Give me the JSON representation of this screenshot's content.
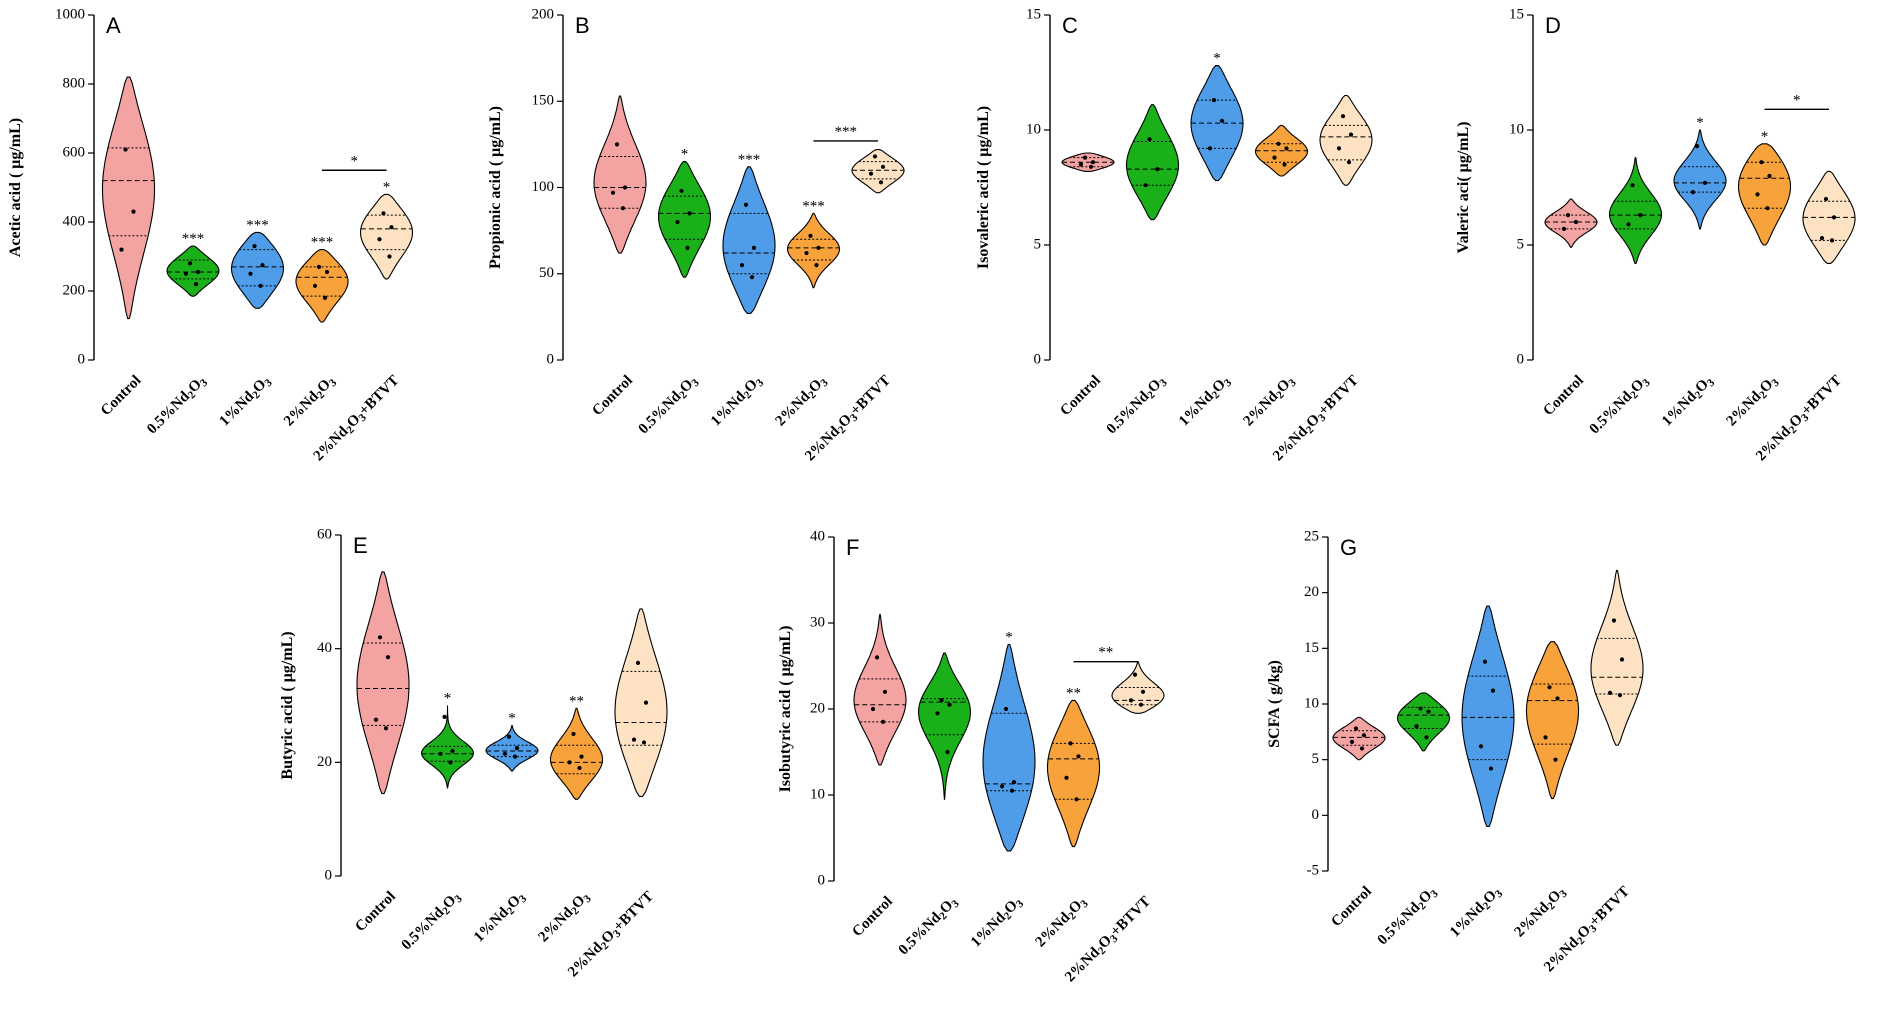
{
  "figure": {
    "category_labels": [
      {
        "main": "Control"
      },
      {
        "main": "0.5%Nd",
        "sub": "2",
        "main2": "O",
        "sub2": "3"
      },
      {
        "main": "1%Nd",
        "sub": "2",
        "main2": "O",
        "sub2": "3"
      },
      {
        "main": "2%Nd",
        "sub": "2",
        "main2": "O",
        "sub2": "3"
      },
      {
        "main": "2%Nd",
        "sub": "2",
        "main2": "O",
        "sub2": "3",
        "tail": "+BTVT"
      }
    ]
  },
  "chart_data": [
    {
      "panel": "A",
      "type": "violin",
      "categories": [
        "Control",
        "0.5%Nd2O3",
        "1%Nd2O3",
        "2%Nd2O3",
        "2%Nd2O3+BTVT"
      ],
      "ylabel": "Acetic acid ( μg/mL)",
      "ylim": [
        0,
        1000
      ],
      "yticks": [
        "0",
        "200",
        "400",
        "600",
        "800",
        "1000"
      ],
      "colors": [
        "#f4a3a3",
        "#19b019",
        "#4f9de8",
        "#f7a23b",
        "#fde3c3"
      ],
      "series": [
        {
          "name": "Control",
          "range": [
            120,
            820
          ],
          "median": 520,
          "q1": 360,
          "q3": 615,
          "points": [
            610,
            430,
            320
          ]
        },
        {
          "name": "0.5%Nd2O3",
          "range": [
            185,
            330
          ],
          "median": 255,
          "q1": 235,
          "q3": 290,
          "points": [
            280,
            255,
            250,
            220
          ]
        },
        {
          "name": "1%Nd2O3",
          "range": [
            150,
            370
          ],
          "median": 270,
          "q1": 215,
          "q3": 320,
          "points": [
            330,
            275,
            250,
            215
          ]
        },
        {
          "name": "2%Nd2O3",
          "range": [
            110,
            320
          ],
          "median": 240,
          "q1": 185,
          "q3": 270,
          "points": [
            270,
            255,
            215,
            180
          ]
        },
        {
          "name": "2%Nd2O3+BTVT",
          "range": [
            235,
            480
          ],
          "median": 380,
          "q1": 320,
          "q3": 420,
          "points": [
            425,
            385,
            350,
            300
          ]
        }
      ],
      "significance": [
        {
          "index": 1,
          "label": "***"
        },
        {
          "index": 2,
          "label": "***"
        },
        {
          "index": 3,
          "label": "***"
        },
        {
          "index": 4,
          "label": "*"
        }
      ],
      "brackets": [
        {
          "from": 3,
          "to": 4,
          "value": 550,
          "label": "*"
        }
      ]
    },
    {
      "panel": "B",
      "type": "violin",
      "categories": [
        "Control",
        "0.5%Nd2O3",
        "1%Nd2O3",
        "2%Nd2O3",
        "2%Nd2O3+BTVT"
      ],
      "ylabel": "Propionic acid ( μg/mL)",
      "ylim": [
        0,
        200
      ],
      "yticks": [
        "0",
        "50",
        "100",
        "150",
        "200"
      ],
      "colors": [
        "#f4a3a3",
        "#19b019",
        "#4f9de8",
        "#f7a23b",
        "#fde3c3"
      ],
      "series": [
        {
          "name": "Control",
          "range": [
            62,
            153
          ],
          "median": 100,
          "q1": 88,
          "q3": 118,
          "points": [
            125,
            100,
            97,
            88
          ]
        },
        {
          "name": "0.5%Nd2O3",
          "range": [
            48,
            115
          ],
          "median": 85,
          "q1": 70,
          "q3": 95,
          "points": [
            98,
            85,
            80,
            65
          ]
        },
        {
          "name": "1%Nd2O3",
          "range": [
            27,
            112
          ],
          "median": 62,
          "q1": 50,
          "q3": 85,
          "points": [
            90,
            65,
            55,
            48
          ]
        },
        {
          "name": "2%Nd2O3",
          "range": [
            42,
            85
          ],
          "median": 65,
          "q1": 58,
          "q3": 70,
          "points": [
            72,
            65,
            62,
            55
          ]
        },
        {
          "name": "2%Nd2O3+BTVT",
          "range": [
            97,
            122
          ],
          "median": 110,
          "q1": 105,
          "q3": 115,
          "points": [
            118,
            112,
            108,
            103
          ]
        }
      ],
      "significance": [
        {
          "index": 1,
          "label": "*"
        },
        {
          "index": 2,
          "label": "***"
        },
        {
          "index": 3,
          "label": "***"
        }
      ],
      "brackets": [
        {
          "from": 3,
          "to": 4,
          "value": 127,
          "label": "***"
        }
      ]
    },
    {
      "panel": "C",
      "type": "violin",
      "categories": [
        "Control",
        "0.5%Nd2O3",
        "1%Nd2O3",
        "2%Nd2O3",
        "2%Nd2O3+BTVT"
      ],
      "ylabel": "Isovaleric acid ( μg/mL)",
      "ylim": [
        0,
        15
      ],
      "yticks": [
        "0",
        "5",
        "10",
        "15"
      ],
      "colors": [
        "#f4a3a3",
        "#19b019",
        "#4f9de8",
        "#f7a23b",
        "#fde3c3"
      ],
      "series": [
        {
          "name": "Control",
          "range": [
            8.2,
            9.0
          ],
          "median": 8.6,
          "q1": 8.4,
          "q3": 8.8,
          "points": [
            8.8,
            8.6,
            8.5,
            8.4
          ]
        },
        {
          "name": "0.5%Nd2O3",
          "range": [
            6.1,
            11.1
          ],
          "median": 8.3,
          "q1": 7.6,
          "q3": 9.5,
          "points": [
            9.6,
            8.3,
            7.6
          ]
        },
        {
          "name": "1%Nd2O3",
          "range": [
            7.8,
            12.8
          ],
          "median": 10.3,
          "q1": 9.2,
          "q3": 11.3,
          "points": [
            11.3,
            10.4,
            9.2
          ]
        },
        {
          "name": "2%Nd2O3",
          "range": [
            8.0,
            10.2
          ],
          "median": 9.1,
          "q1": 8.6,
          "q3": 9.4,
          "points": [
            9.4,
            9.2,
            8.8,
            8.5
          ]
        },
        {
          "name": "2%Nd2O3+BTVT",
          "range": [
            7.6,
            11.5
          ],
          "median": 9.7,
          "q1": 8.7,
          "q3": 10.2,
          "points": [
            10.6,
            9.8,
            9.2,
            8.6
          ]
        }
      ],
      "significance": [
        {
          "index": 2,
          "label": "*"
        }
      ],
      "brackets": []
    },
    {
      "panel": "D",
      "type": "violin",
      "categories": [
        "Control",
        "0.5%Nd2O3",
        "1%Nd2O3",
        "2%Nd2O3",
        "2%Nd2O3+BTVT"
      ],
      "ylabel": "Valeric aci( μg/mL)",
      "ylim": [
        0,
        15
      ],
      "yticks": [
        "0",
        "5",
        "10",
        "15"
      ],
      "colors": [
        "#f4a3a3",
        "#19b019",
        "#4f9de8",
        "#f7a23b",
        "#fde3c3"
      ],
      "series": [
        {
          "name": "Control",
          "range": [
            4.9,
            7.0
          ],
          "median": 6.0,
          "q1": 5.7,
          "q3": 6.3,
          "points": [
            6.3,
            6.0,
            5.7
          ]
        },
        {
          "name": "0.5%Nd2O3",
          "range": [
            4.2,
            8.8
          ],
          "median": 6.3,
          "q1": 5.7,
          "q3": 6.9,
          "points": [
            7.6,
            6.3,
            5.9
          ]
        },
        {
          "name": "1%Nd2O3",
          "range": [
            5.7,
            10.0
          ],
          "median": 7.7,
          "q1": 7.3,
          "q3": 8.4,
          "points": [
            9.3,
            7.7,
            7.3
          ]
        },
        {
          "name": "2%Nd2O3",
          "range": [
            5.0,
            9.4
          ],
          "median": 7.9,
          "q1": 6.6,
          "q3": 8.6,
          "points": [
            8.6,
            8.0,
            7.2,
            6.6
          ]
        },
        {
          "name": "2%Nd2O3+BTVT",
          "range": [
            4.2,
            8.2
          ],
          "median": 6.2,
          "q1": 5.2,
          "q3": 6.9,
          "points": [
            7.0,
            6.2,
            5.3,
            5.2
          ]
        }
      ],
      "significance": [
        {
          "index": 2,
          "label": "*"
        },
        {
          "index": 3,
          "label": "*"
        }
      ],
      "brackets": [
        {
          "from": 3,
          "to": 4,
          "value": 10.9,
          "label": "*"
        }
      ]
    },
    {
      "panel": "E",
      "type": "violin",
      "categories": [
        "Control",
        "0.5%Nd2O3",
        "1%Nd2O3",
        "2%Nd2O3",
        "2%Nd2O3+BTVT"
      ],
      "ylabel": "Butyric acid ( μg/mL)",
      "ylim": [
        0,
        60
      ],
      "yticks": [
        "0",
        "20",
        "40",
        "60"
      ],
      "colors": [
        "#f4a3a3",
        "#19b019",
        "#4f9de8",
        "#f7a23b",
        "#fde3c3"
      ],
      "series": [
        {
          "name": "Control",
          "range": [
            14.5,
            53.5
          ],
          "median": 33.0,
          "q1": 26.5,
          "q3": 41.0,
          "points": [
            42.0,
            38.5,
            27.5,
            26.0
          ]
        },
        {
          "name": "0.5%Nd2O3",
          "range": [
            15.5,
            30.0
          ],
          "median": 21.5,
          "q1": 20.2,
          "q3": 22.8,
          "points": [
            28.0,
            22.0,
            21.5,
            20.0
          ]
        },
        {
          "name": "1%Nd2O3",
          "range": [
            18.5,
            26.5
          ],
          "median": 22.0,
          "q1": 21.0,
          "q3": 23.0,
          "points": [
            24.5,
            22.5,
            21.5,
            21.0
          ]
        },
        {
          "name": "2%Nd2O3",
          "range": [
            13.5,
            29.5
          ],
          "median": 20.0,
          "q1": 18.0,
          "q3": 23.0,
          "points": [
            25.0,
            21.0,
            20.0,
            19.0
          ]
        },
        {
          "name": "2%Nd2O3+BTVT",
          "range": [
            14.0,
            47.0
          ],
          "median": 27.0,
          "q1": 23.0,
          "q3": 36.0,
          "points": [
            37.5,
            30.5,
            24.0,
            23.5
          ]
        }
      ],
      "significance": [
        {
          "index": 1,
          "label": "*"
        },
        {
          "index": 2,
          "label": "*"
        },
        {
          "index": 3,
          "label": "**"
        }
      ],
      "brackets": []
    },
    {
      "panel": "F",
      "type": "violin",
      "categories": [
        "Control",
        "0.5%Nd2O3",
        "1%Nd2O3",
        "2%Nd2O3",
        "2%Nd2O3+BTVT"
      ],
      "ylabel": "Isobutyric acid ( μg/mL)",
      "ylim": [
        0,
        40
      ],
      "yticks": [
        "0",
        "10",
        "20",
        "30",
        "40"
      ],
      "colors": [
        "#f4a3a3",
        "#19b019",
        "#4f9de8",
        "#f7a23b",
        "#fde3c3"
      ],
      "series": [
        {
          "name": "Control",
          "range": [
            13.5,
            31.0
          ],
          "median": 20.5,
          "q1": 18.5,
          "q3": 23.5,
          "points": [
            26.0,
            22.0,
            20.0,
            18.5
          ]
        },
        {
          "name": "0.5%Nd2O3",
          "range": [
            9.5,
            26.5
          ],
          "median": 20.8,
          "q1": 17.0,
          "q3": 21.2,
          "points": [
            21.0,
            20.5,
            19.5,
            15.0
          ]
        },
        {
          "name": "1%Nd2O3",
          "range": [
            3.5,
            27.5
          ],
          "median": 11.3,
          "q1": 10.5,
          "q3": 19.5,
          "points": [
            20.0,
            11.5,
            11.0,
            10.5
          ]
        },
        {
          "name": "2%Nd2O3",
          "range": [
            4.0,
            21.0
          ],
          "median": 14.2,
          "q1": 9.5,
          "q3": 16.0,
          "points": [
            16.0,
            14.5,
            12.0,
            9.5
          ]
        },
        {
          "name": "2%Nd2O3+BTVT",
          "range": [
            19.5,
            25.5
          ],
          "median": 21.0,
          "q1": 20.5,
          "q3": 22.5,
          "points": [
            24.0,
            22.0,
            21.0,
            20.5
          ]
        }
      ],
      "significance": [
        {
          "index": 2,
          "label": "*"
        },
        {
          "index": 3,
          "label": "**"
        }
      ],
      "brackets": [
        {
          "from": 3,
          "to": 4,
          "value": 25.5,
          "label": "**"
        }
      ]
    },
    {
      "panel": "G",
      "type": "violin",
      "categories": [
        "Control",
        "0.5%Nd2O3",
        "1%Nd2O3",
        "2%Nd2O3",
        "2%Nd2O3+BTVT"
      ],
      "ylabel": "SCFA ( g/kg)",
      "ylim": [
        -5,
        25
      ],
      "yticks": [
        "-5",
        "0",
        "5",
        "10",
        "15",
        "20",
        "25"
      ],
      "colors": [
        "#f4a3a3",
        "#19b019",
        "#4f9de8",
        "#f7a23b",
        "#fde3c3"
      ],
      "series": [
        {
          "name": "Control",
          "range": [
            5.0,
            8.8
          ],
          "median": 7.0,
          "q1": 6.3,
          "q3": 7.6,
          "points": [
            7.8,
            7.2,
            6.6,
            6.0
          ]
        },
        {
          "name": "0.5%Nd2O3",
          "range": [
            5.8,
            11.0
          ],
          "median": 9.0,
          "q1": 7.8,
          "q3": 9.7,
          "points": [
            9.6,
            9.3,
            8.0,
            7.0
          ]
        },
        {
          "name": "1%Nd2O3",
          "range": [
            -1.0,
            18.8
          ],
          "median": 8.8,
          "q1": 5.0,
          "q3": 12.5,
          "points": [
            13.8,
            11.2,
            6.2,
            4.2
          ]
        },
        {
          "name": "2%Nd2O3",
          "range": [
            1.5,
            15.6
          ],
          "median": 10.3,
          "q1": 6.4,
          "q3": 11.8,
          "points": [
            11.5,
            10.5,
            7.0,
            5.0
          ]
        },
        {
          "name": "2%Nd2O3+BTVT",
          "range": [
            6.3,
            22.0
          ],
          "median": 12.4,
          "q1": 10.9,
          "q3": 15.9,
          "points": [
            17.5,
            14.0,
            11.0,
            10.8
          ]
        }
      ],
      "significance": [],
      "brackets": []
    }
  ]
}
